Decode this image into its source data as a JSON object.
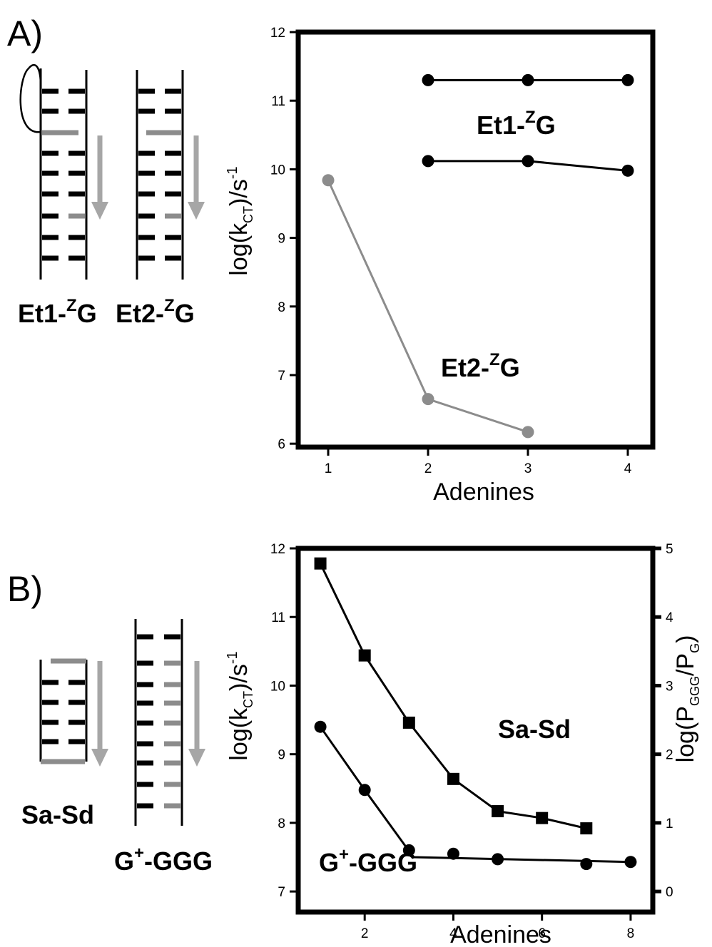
{
  "panels": {
    "a": {
      "letter": "A)"
    },
    "b": {
      "letter": "B)"
    }
  },
  "schematics": {
    "a": {
      "left_label": "Et1-",
      "left_label_sup": "Z",
      "left_label_tail": "G",
      "right_label": "Et2-",
      "right_label_sup": "Z",
      "right_label_tail": "G"
    },
    "b": {
      "left_label": "Sa-Sd",
      "right_label": "G",
      "right_label_sup": "+",
      "right_label_tail": "-GGG"
    }
  },
  "colors": {
    "black": "#000000",
    "gray": "#8c8c8c",
    "arrow_gray": "#a6a6a6"
  },
  "chart_data": [
    {
      "type": "line",
      "panel": "A",
      "xlabel": "Adenines",
      "ylabel_main": "log(k",
      "ylabel_sub": "CT",
      "ylabel_mid": ")/s",
      "ylabel_sup": "-1",
      "xlim": [
        0.7,
        4.25
      ],
      "ylim": [
        5.95,
        12
      ],
      "xticks": [
        1,
        2,
        3,
        4
      ],
      "yticks": [
        6,
        7,
        8,
        9,
        10,
        11,
        12
      ],
      "series": [
        {
          "key": "et1_upper",
          "color": "#000000",
          "marker": "circle",
          "x": [
            2,
            3,
            4
          ],
          "y": [
            11.3,
            11.3,
            11.3
          ]
        },
        {
          "key": "et1_lower",
          "color": "#000000",
          "marker": "circle",
          "x": [
            2,
            3,
            4
          ],
          "y": [
            10.12,
            10.12,
            9.98
          ]
        },
        {
          "key": "et2",
          "color": "#8c8c8c",
          "marker": "circle",
          "x": [
            1,
            2,
            3
          ],
          "y": [
            9.84,
            6.65,
            6.17
          ]
        }
      ],
      "annotations": [
        {
          "text": "Et1-",
          "sup": "Z",
          "tail": "G",
          "near": "et1"
        },
        {
          "text": "Et2-",
          "sup": "Z",
          "tail": "G",
          "near": "et2"
        }
      ]
    },
    {
      "type": "line",
      "panel": "B",
      "xlabel": "Adenines",
      "ylabel_main": "log(k",
      "ylabel_sub": "CT",
      "ylabel_mid": ")/s",
      "ylabel_sup": "-1",
      "ylabel_right_main": "log(P",
      "ylabel_right_sub1": "GGG",
      "ylabel_right_mid": "/P",
      "ylabel_right_sub2": "G",
      "ylabel_right_tail": ")",
      "xlim": [
        0.5,
        8.5
      ],
      "ylim": [
        6.7,
        12
      ],
      "y2lim": [
        -0.3,
        5
      ],
      "xticks": [
        2,
        4,
        6,
        8
      ],
      "yticks": [
        7,
        8,
        9,
        10,
        11,
        12
      ],
      "y2ticks": [
        0,
        1,
        2,
        3,
        4,
        5
      ],
      "series": [
        {
          "key": "sa_sd",
          "color": "#000000",
          "marker": "square",
          "x": [
            1,
            2,
            3,
            4,
            5,
            6,
            7
          ],
          "y": [
            11.78,
            10.44,
            9.46,
            8.64,
            8.17,
            8.07,
            7.92
          ]
        },
        {
          "key": "g_ggg",
          "color": "#000000",
          "marker": "circle",
          "x": [
            1,
            2,
            3,
            4,
            5,
            7,
            8
          ],
          "y": [
            9.4,
            8.48,
            7.6,
            7.55,
            7.47,
            7.4,
            7.43
          ],
          "fit_x": [
            1,
            2,
            3.1,
            8
          ],
          "fit_y": [
            9.4,
            8.48,
            7.5,
            7.43
          ]
        }
      ],
      "annotations": [
        {
          "text": "Sa-Sd",
          "near": "sa_sd"
        },
        {
          "text": "G",
          "sup": "+",
          "tail": "-GGG",
          "near": "g_ggg"
        }
      ]
    }
  ]
}
